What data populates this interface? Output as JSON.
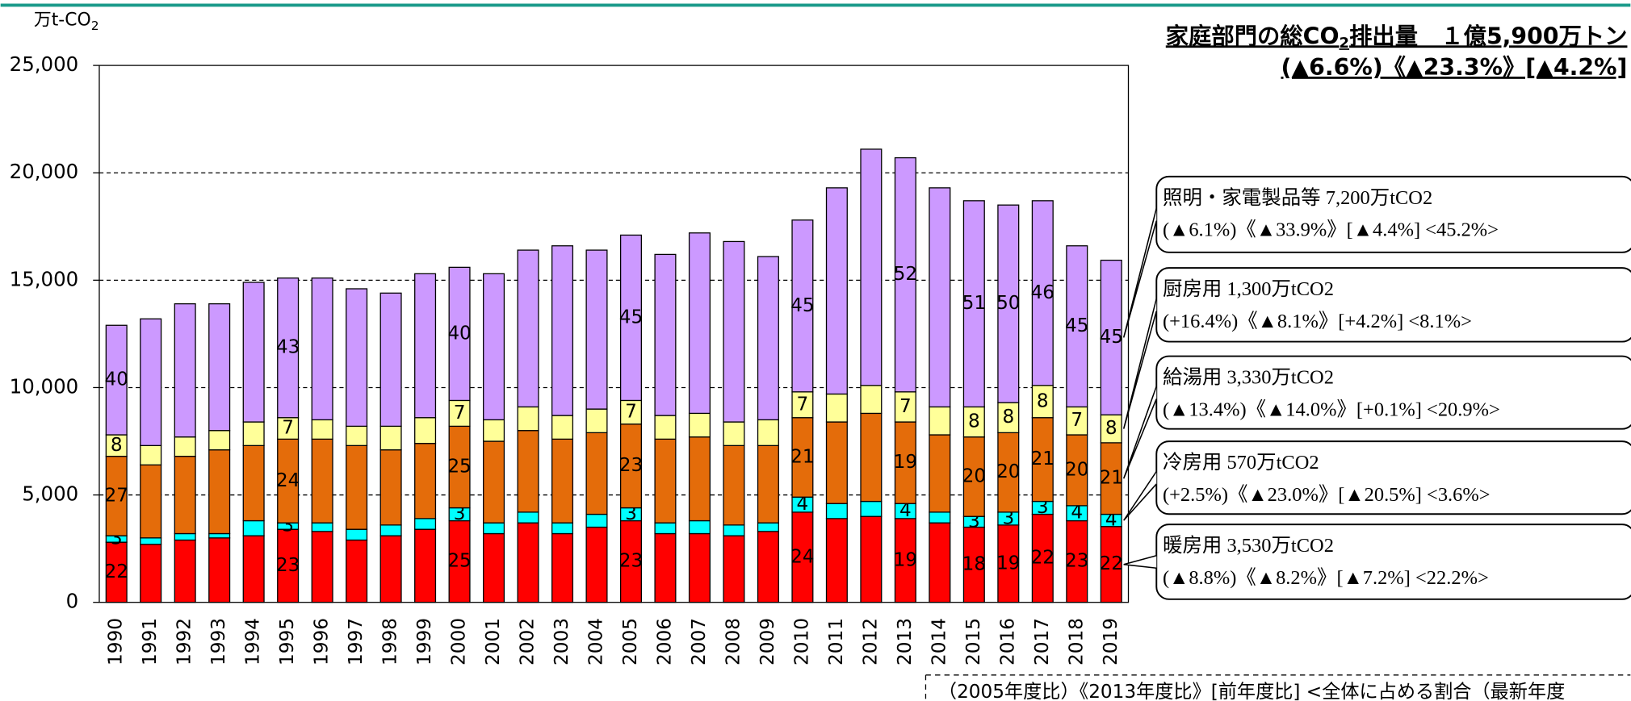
{
  "chart_data": {
    "type": "stacked_bar",
    "title": {
      "main": "家庭部門の総CO",
      "sub": "2",
      "rest": "排出量　１億5,900万トン"
    },
    "subtitle": "(▲6.6%)《▲23.3%》[▲4.2%]",
    "unit": {
      "main": "万t-CO",
      "sub": "2"
    },
    "footnote": "（2005年度比）《2013年度比》[前年度比] <全体に占める割合（最新年度",
    "categories": [
      "1990",
      "1991",
      "1992",
      "1993",
      "1994",
      "1995",
      "1996",
      "1997",
      "1998",
      "1999",
      "2000",
      "2001",
      "2002",
      "2003",
      "2004",
      "2005",
      "2006",
      "2007",
      "2008",
      "2009",
      "2010",
      "2011",
      "2012",
      "2013",
      "2014",
      "2015",
      "2016",
      "2017",
      "2018",
      "2019"
    ],
    "ylim": [
      0,
      25000
    ],
    "yticks": [
      0,
      {
        "value": 5000,
        "label": "5,000"
      },
      {
        "value": 10000,
        "label": "10,000"
      },
      {
        "value": 15000,
        "label": "15,000"
      },
      {
        "value": 20000,
        "label": "20,000"
      },
      {
        "value": 25000,
        "label": "25,000"
      }
    ],
    "grid": true,
    "series": [
      {
        "color": "#ff0000",
        "values": [
          2800,
          2700,
          2900,
          3000,
          3100,
          3400,
          3300,
          2900,
          3100,
          3400,
          3800,
          3200,
          3700,
          3200,
          3500,
          3800,
          3200,
          3200,
          3100,
          3300,
          4200,
          3900,
          4000,
          3900,
          3700,
          3500,
          3600,
          4100,
          3800,
          3530
        ],
        "shares": [
          22,
          null,
          null,
          null,
          null,
          23,
          null,
          null,
          null,
          null,
          25,
          null,
          null,
          null,
          null,
          23,
          null,
          null,
          null,
          null,
          24,
          null,
          null,
          19,
          null,
          18,
          19,
          22,
          23,
          22
        ]
      },
      {
        "color": "#00ffff",
        "values": [
          300,
          300,
          300,
          200,
          700,
          300,
          400,
          500,
          500,
          500,
          600,
          500,
          500,
          500,
          600,
          600,
          500,
          600,
          500,
          400,
          700,
          700,
          700,
          700,
          500,
          500,
          600,
          600,
          700,
          570
        ],
        "shares": [
          3,
          null,
          null,
          null,
          null,
          3,
          null,
          null,
          null,
          null,
          3,
          null,
          null,
          null,
          null,
          3,
          null,
          null,
          null,
          null,
          4,
          null,
          null,
          4,
          null,
          3,
          3,
          3,
          4,
          4
        ]
      },
      {
        "color": "#e46c0a",
        "values": [
          3700,
          3400,
          3600,
          3900,
          3500,
          3900,
          3900,
          3900,
          3500,
          3500,
          3800,
          3800,
          3800,
          3900,
          3800,
          3900,
          3900,
          3900,
          3700,
          3600,
          3700,
          3800,
          4100,
          3800,
          3600,
          3700,
          3700,
          3900,
          3300,
          3330
        ],
        "shares": [
          27,
          null,
          null,
          null,
          null,
          24,
          null,
          null,
          null,
          null,
          25,
          null,
          null,
          null,
          null,
          23,
          null,
          null,
          null,
          null,
          21,
          null,
          null,
          19,
          null,
          20,
          20,
          21,
          20,
          21
        ]
      },
      {
        "color": "#ffff99",
        "values": [
          1000,
          900,
          900,
          900,
          1100,
          1000,
          900,
          900,
          1100,
          1200,
          1200,
          1000,
          1100,
          1100,
          1100,
          1100,
          1100,
          1100,
          1100,
          1200,
          1200,
          1300,
          1300,
          1400,
          1300,
          1400,
          1400,
          1500,
          1300,
          1300
        ],
        "shares": [
          8,
          null,
          null,
          null,
          null,
          7,
          null,
          null,
          null,
          null,
          7,
          null,
          null,
          null,
          null,
          7,
          null,
          null,
          null,
          null,
          7,
          null,
          null,
          7,
          null,
          8,
          8,
          8,
          7,
          8
        ]
      },
      {
        "color": "#cc99ff",
        "values": [
          5100,
          5900,
          6200,
          5900,
          6500,
          6500,
          6600,
          6400,
          6200,
          6700,
          6200,
          6800,
          7300,
          7900,
          7400,
          7700,
          7500,
          8400,
          8400,
          7600,
          8000,
          9600,
          11000,
          10900,
          10200,
          9600,
          9200,
          8600,
          7500,
          7200
        ],
        "shares": [
          40,
          null,
          null,
          null,
          null,
          43,
          null,
          null,
          null,
          null,
          40,
          null,
          null,
          null,
          null,
          45,
          null,
          null,
          null,
          null,
          45,
          null,
          null,
          52,
          null,
          51,
          50,
          46,
          45,
          45
        ]
      }
    ],
    "annotations": [
      {
        "line1": "照明・家電製品等 7,200万tCO2",
        "line2": "(▲6.1%)《▲33.9%》[▲4.4%] <45.2%>"
      },
      {
        "line1": "厨房用 1,300万tCO2",
        "line2": "(+16.4%)《▲8.1%》[+4.2%] <8.1%>"
      },
      {
        "line1": "給湯用 3,330万tCO2",
        "line2": "(▲13.4%)《▲14.0%》[+0.1%] <20.9%>"
      },
      {
        "line1": "冷房用 570万tCO2",
        "line2": "(+2.5%)《▲23.0%》[▲20.5%] <3.6%>"
      },
      {
        "line1": "暖房用 3,530万tCO2",
        "line2": "(▲8.8%)《▲8.2%》[▲7.2%] <22.2%>"
      }
    ]
  }
}
